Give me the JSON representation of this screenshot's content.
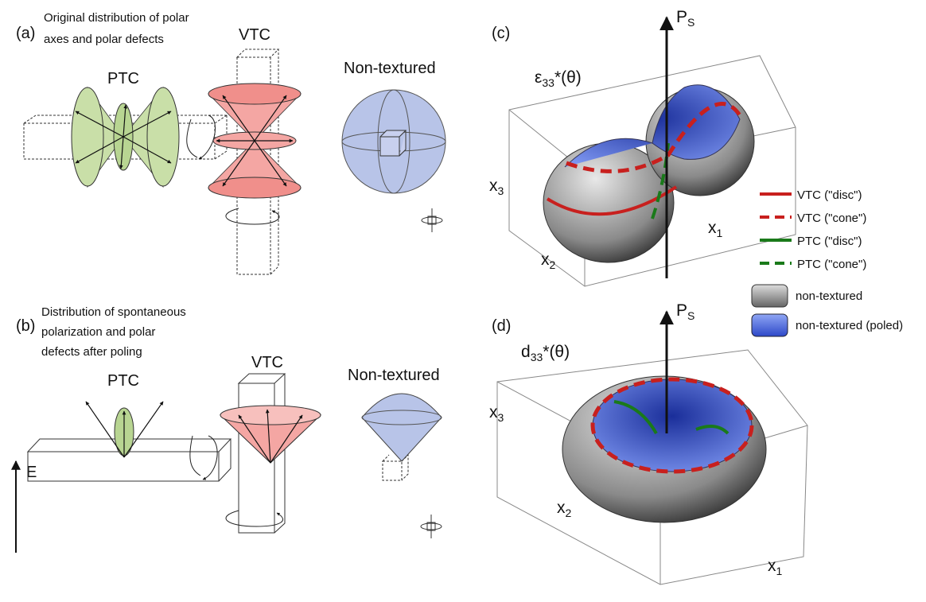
{
  "panel_a": {
    "label": "(a)",
    "caption_lines": [
      "Original distribution of polar",
      "axes and polar defects"
    ],
    "ptc": "PTC",
    "vtc": "VTC",
    "non_textured": "Non-textured"
  },
  "panel_b": {
    "label": "(b)",
    "caption_lines": [
      "Distribution of spontaneous",
      "polarization and polar",
      "defects after poling"
    ],
    "field": "E",
    "ptc": "PTC",
    "vtc": "VTC",
    "non_textured": "Non-textured"
  },
  "panel_c": {
    "label": "(c)",
    "polarization": {
      "main": "P",
      "sub": "S"
    },
    "quantity": {
      "main": "ε",
      "sub": "33",
      "tail": "*(θ)"
    },
    "x3": {
      "main": "x",
      "sub": "3"
    },
    "x1": {
      "main": "x",
      "sub": "1"
    },
    "x2": {
      "main": "x",
      "sub": "2"
    }
  },
  "legend": {
    "items": [
      "VTC (\"disc\")",
      "VTC (\"cone\")",
      "PTC (\"disc\")",
      "PTC (\"cone\")",
      "non-textured",
      "non-textured (poled)"
    ]
  },
  "panel_d": {
    "label": "(d)",
    "polarization": {
      "main": "P",
      "sub": "S"
    },
    "quantity": {
      "main": "d",
      "sub": "33",
      "tail": "*(θ)"
    },
    "x3": {
      "main": "x",
      "sub": "3"
    },
    "x2": {
      "main": "x",
      "sub": "2"
    },
    "x1": {
      "main": "x",
      "sub": "1"
    }
  }
}
